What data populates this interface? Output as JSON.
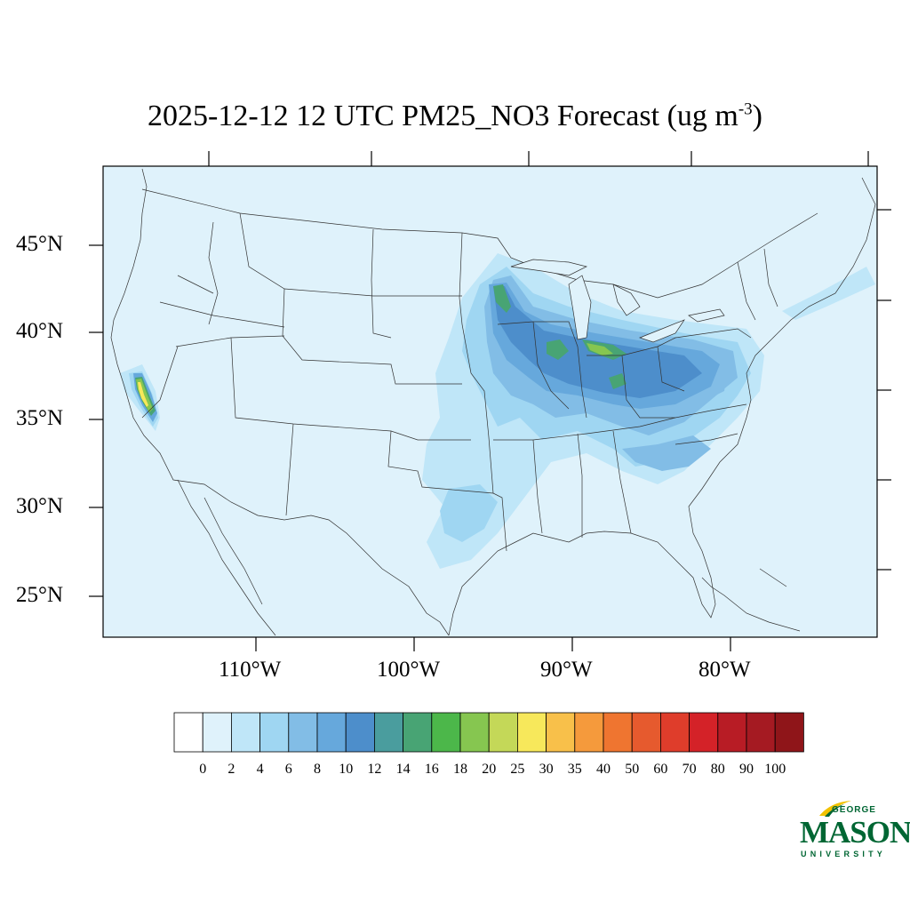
{
  "title": {
    "text": "2025-12-12 12 UTC PM25_NO3 Forecast (ug m",
    "superscript": "-3",
    "suffix": ")"
  },
  "map": {
    "background_color": "#dff2fb",
    "lat_labels": [
      "45°N",
      "40°N",
      "35°N",
      "30°N",
      "25°N"
    ],
    "lon_labels": [
      "110°W",
      "100°W",
      "90°W",
      "80°W"
    ]
  },
  "colorbar": {
    "levels": [
      "0",
      "2",
      "4",
      "6",
      "8",
      "10",
      "12",
      "14",
      "16",
      "18",
      "20",
      "25",
      "30",
      "35",
      "40",
      "50",
      "60",
      "70",
      "80",
      "90",
      "100"
    ],
    "colors": [
      "#ffffff",
      "#dff2fb",
      "#bfe6f8",
      "#9fd6f2",
      "#82bde6",
      "#66a8dc",
      "#4d8ecb",
      "#4a9d9e",
      "#48a474",
      "#4cb74a",
      "#86c650",
      "#c4d858",
      "#f7e85b",
      "#f8c04a",
      "#f59a3c",
      "#ef7530",
      "#e65a2e",
      "#df3d2b",
      "#d42228",
      "#b81c25",
      "#a51a22",
      "#8f1519"
    ]
  },
  "logo": {
    "line1": "GEORGE",
    "line2": "MASON",
    "line3": "UNIVERSITY",
    "color": "#006633",
    "accent": "#f2c200"
  }
}
